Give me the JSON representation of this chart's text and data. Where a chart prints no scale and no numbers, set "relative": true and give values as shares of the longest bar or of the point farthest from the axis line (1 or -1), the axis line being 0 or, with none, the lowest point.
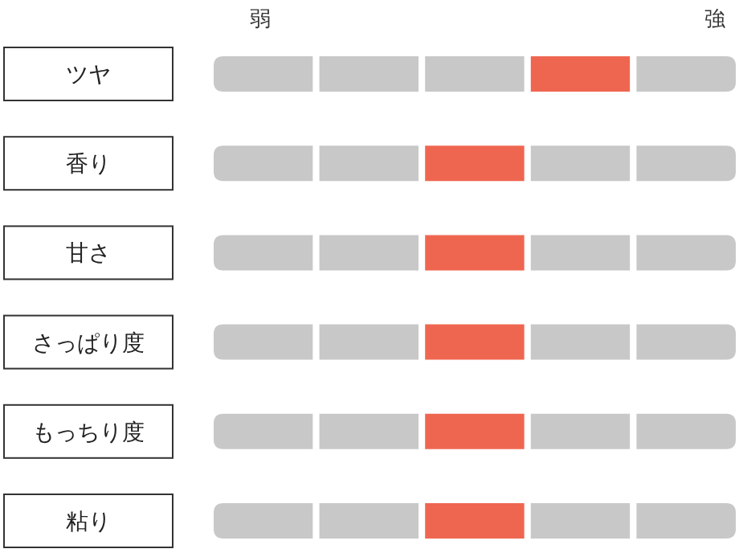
{
  "chart_data": {
    "type": "bar",
    "orientation": "horizontal",
    "relative": true,
    "stacked": true,
    "categories": [
      "ツヤ",
      "香り",
      "甘さ",
      "さっぱり度",
      "もっちり度",
      "粘り"
    ],
    "annotations": [
      "弱",
      "強"
    ],
    "series": [
      {
        "colors": [
          "#c8c8c8",
          "#c8c8c8",
          "#c8c8c8",
          "#c8c8c8",
          "#c8c8c8",
          "#c8c8c8"
        ],
        "values": [
          0.2,
          0.2,
          0.2,
          0.2,
          0.2,
          0.2
        ]
      },
      {
        "colors": [
          "#c8c8c8",
          "#c8c8c8",
          "#c8c8c8",
          "#c8c8c8",
          "#c8c8c8",
          "#c8c8c8"
        ],
        "values": [
          0.2,
          0.2,
          0.2,
          0.2,
          0.2,
          0.2
        ]
      },
      {
        "colors": [
          "#c8c8c8",
          "#ef6650",
          "#ef6650",
          "#ef6650",
          "#ef6650",
          "#ef6650"
        ],
        "values": [
          0.2,
          0.2,
          0.2,
          0.2,
          0.2,
          0.2
        ]
      },
      {
        "colors": [
          "#ef6650",
          "#c8c8c8",
          "#c8c8c8",
          "#c8c8c8",
          "#c8c8c8",
          "#c8c8c8"
        ],
        "values": [
          0.2,
          0.2,
          0.2,
          0.2,
          0.2,
          0.2
        ]
      },
      {
        "colors": [
          "#c8c8c8",
          "#c8c8c8",
          "#c8c8c8",
          "#c8c8c8",
          "#c8c8c8",
          "#c8c8c8"
        ],
        "values": [
          0.2,
          0.2,
          0.2,
          0.2,
          0.2,
          0.2
        ]
      }
    ]
  }
}
